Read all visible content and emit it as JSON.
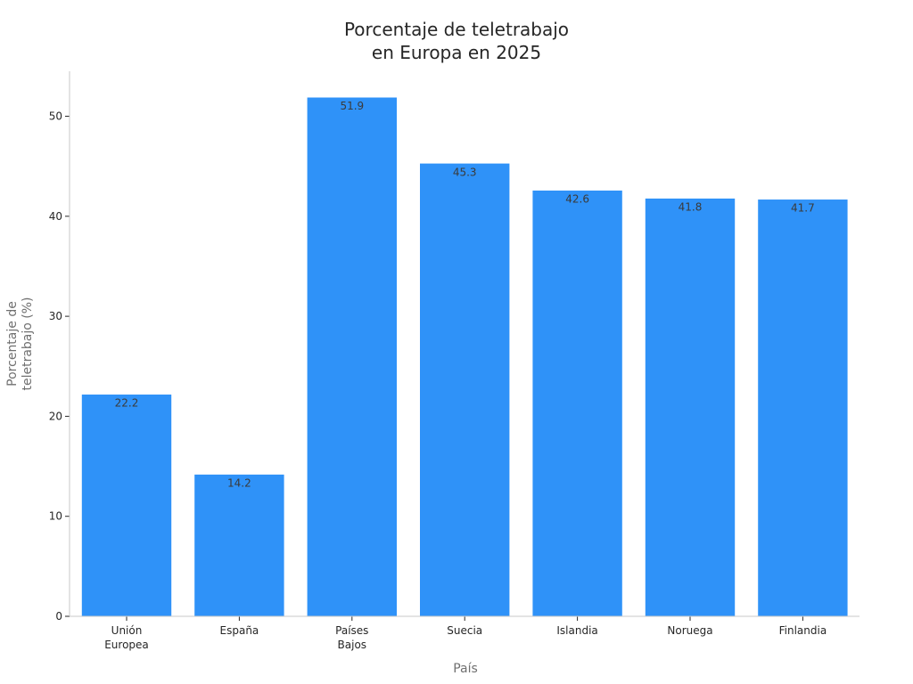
{
  "chart_data": {
    "type": "bar",
    "title": [
      "Porcentaje de teletrabajo",
      "en Europa en 2025"
    ],
    "xlabel": "País",
    "ylabel": [
      "Porcentaje de",
      "teletrabajo (%)"
    ],
    "categories": [
      [
        "Unión",
        "Europea"
      ],
      [
        "España"
      ],
      [
        "Países",
        "Bajos"
      ],
      [
        "Suecia"
      ],
      [
        "Islandia"
      ],
      [
        "Noruega"
      ],
      [
        "Finlandia"
      ]
    ],
    "values": [
      22.2,
      14.2,
      51.9,
      45.3,
      42.6,
      41.8,
      41.7
    ],
    "data_labels": [
      "22.2",
      "14.2",
      "51.9",
      "45.3",
      "42.6",
      "41.8",
      "41.7"
    ],
    "yticks": [
      0,
      10,
      20,
      30,
      40,
      50
    ],
    "ylim": [
      0,
      54.5
    ],
    "grid": false,
    "colors": {
      "bar": "#2f92f8"
    }
  }
}
